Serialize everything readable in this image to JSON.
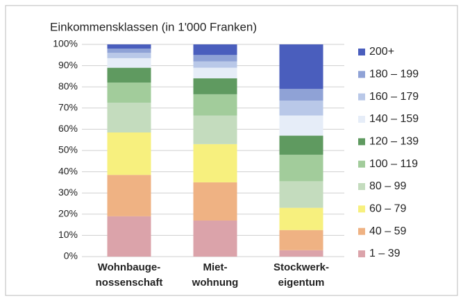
{
  "chart_data": {
    "type": "stacked_bar",
    "title": "Einkommensklassen (in 1'000 Franken)",
    "categories": [
      [
        "Wohnbauge-",
        "nossenschaft"
      ],
      [
        "Miet-",
        "wohnung"
      ],
      [
        "Stockwerk-",
        "eigentum"
      ]
    ],
    "ylim": [
      0,
      100
    ],
    "yticks": [
      {
        "value": 0,
        "label": "0%"
      },
      {
        "value": 10,
        "label": "10%"
      },
      {
        "value": 20,
        "label": "20%"
      },
      {
        "value": 30,
        "label": "30%"
      },
      {
        "value": 40,
        "label": "40%"
      },
      {
        "value": 50,
        "label": "50%"
      },
      {
        "value": 60,
        "label": "60%"
      },
      {
        "value": 70,
        "label": "70%"
      },
      {
        "value": 80,
        "label": "80%"
      },
      {
        "value": 90,
        "label": "90%"
      },
      {
        "value": 100,
        "label": "100%"
      }
    ],
    "grid": true,
    "series": [
      {
        "name": "1 – 39",
        "color": "#dba3aa",
        "values": [
          19,
          17,
          3
        ]
      },
      {
        "name": "40 – 59",
        "color": "#efb283",
        "values": [
          19.5,
          18,
          9.5
        ]
      },
      {
        "name": "60 – 79",
        "color": "#f7f07e",
        "values": [
          20,
          18,
          10.5
        ]
      },
      {
        "name": "80 – 99",
        "color": "#c4dcbe",
        "values": [
          14,
          13.5,
          12.5
        ]
      },
      {
        "name": "100 – 119",
        "color": "#a2cc9b",
        "values": [
          9.5,
          10,
          12.5
        ]
      },
      {
        "name": "120 – 139",
        "color": "#5f9a60",
        "values": [
          7,
          7.5,
          9
        ]
      },
      {
        "name": "140 – 159",
        "color": "#e6edf8",
        "values": [
          4.5,
          5,
          9.5
        ]
      },
      {
        "name": "160 – 179",
        "color": "#b9c8e8",
        "values": [
          2.5,
          3,
          7
        ]
      },
      {
        "name": "180 – 199",
        "color": "#8fa2d6",
        "values": [
          2,
          3,
          5.5
        ]
      },
      {
        "name": "200+",
        "color": "#4a5ebd",
        "values": [
          2,
          5,
          21
        ]
      }
    ]
  }
}
